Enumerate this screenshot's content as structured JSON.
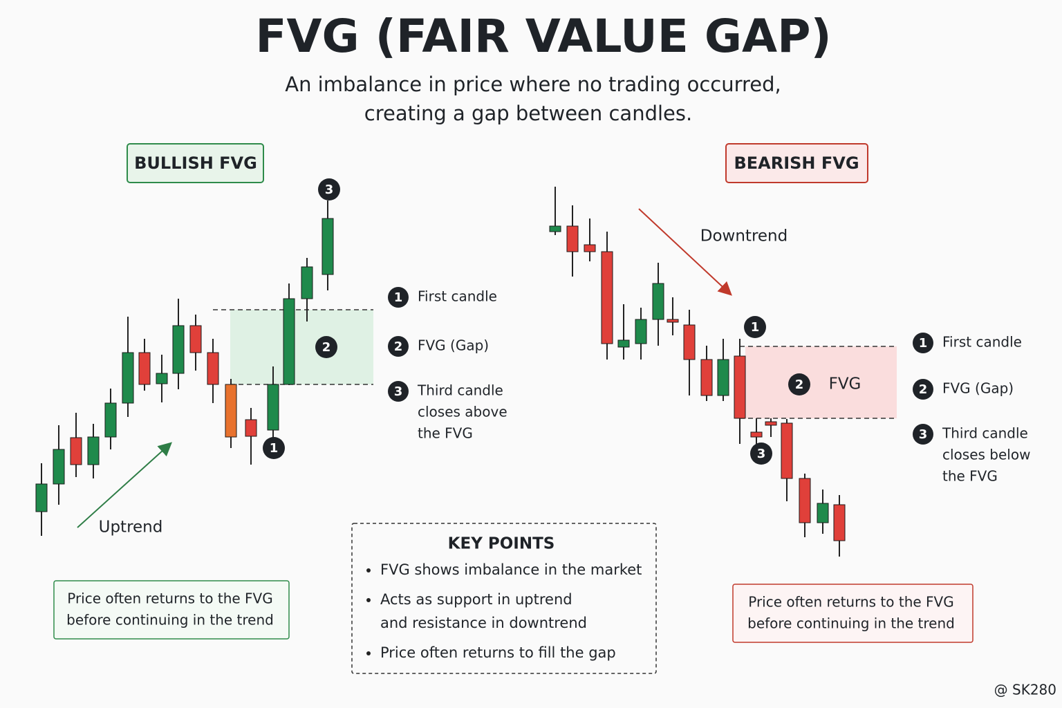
{
  "header": {
    "title": "FVG (FAIR VALUE GAP)",
    "subtitle_lines": [
      "An imbalance in price where no trading occurred,",
      "creating a gap between candles."
    ]
  },
  "bullish": {
    "label": "BULLISH FVG",
    "trend": "Uptrend",
    "markers": [
      "1",
      "2",
      "3"
    ],
    "legend": [
      {
        "number": "1",
        "lines": [
          "First candle"
        ]
      },
      {
        "number": "2",
        "lines": [
          "FVG (Gap)"
        ]
      },
      {
        "number": "3",
        "lines": [
          "Third candle",
          "closes above",
          "the FVG"
        ]
      }
    ],
    "note_lines": [
      "Price often returns to the FVG",
      "before continuing in the trend"
    ]
  },
  "bearish": {
    "label": "BEARISH FVG",
    "trend": "Downtrend",
    "markers": [
      "1",
      "2",
      "3"
    ],
    "gap_label": "FVG",
    "legend": [
      {
        "number": "1",
        "lines": [
          "First candle"
        ]
      },
      {
        "number": "2",
        "lines": [
          "FVG (Gap)"
        ]
      },
      {
        "number": "3",
        "lines": [
          "Third candle",
          "closes below",
          "the FVG"
        ]
      }
    ],
    "note_lines": [
      "Price often returns to the FVG",
      "before continuing in the trend"
    ]
  },
  "key_points": {
    "title": "KEY POINTS",
    "items": [
      [
        "FVG shows imbalance in the market"
      ],
      [
        "Acts as support in uptrend",
        "and resistance in downtrend"
      ],
      [
        "Price often returns to fill the gap"
      ]
    ]
  },
  "watermark": "@ SK280"
}
